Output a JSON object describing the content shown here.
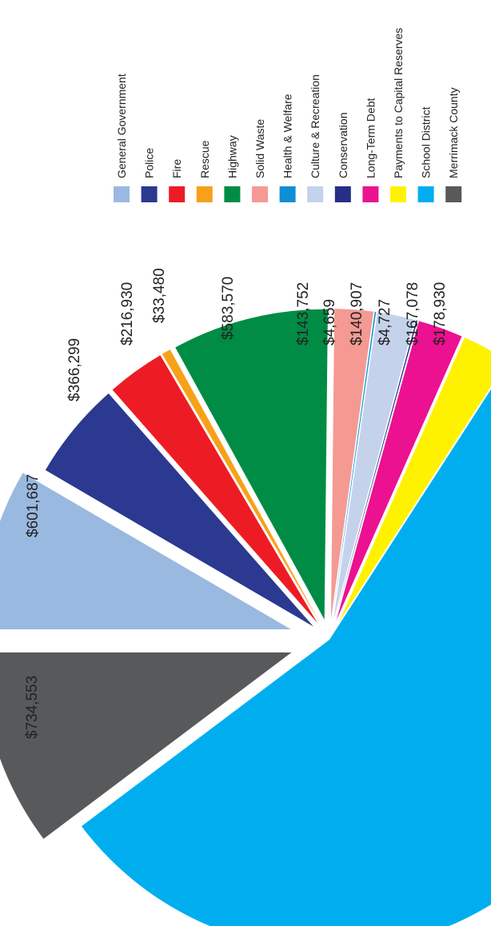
{
  "chart_data": {
    "type": "pie",
    "exploded": true,
    "title": "",
    "series": [
      {
        "name": "General Government",
        "value": 601687,
        "label": "$601,687",
        "color": "#99b9e0"
      },
      {
        "name": "Police",
        "value": 366299,
        "label": "$366,299",
        "color": "#2b3990"
      },
      {
        "name": "Fire",
        "value": 216930,
        "label": "$216,930",
        "color": "#ed1c24"
      },
      {
        "name": "Rescue",
        "value": 33480,
        "label": "$33,480",
        "color": "#f7a11a"
      },
      {
        "name": "Highway",
        "value": 583570,
        "label": "$583,570",
        "color": "#008c45"
      },
      {
        "name": "Solid Waste",
        "value": 143752,
        "label": "$143,752",
        "color": "#f49a93"
      },
      {
        "name": "Health & Welfare",
        "value": 4659,
        "label": "$4,659",
        "color": "#0e8ed4"
      },
      {
        "name": "Culture & Recreation",
        "value": 140907,
        "label": "$140,907",
        "color": "#c5d2ec"
      },
      {
        "name": "Conservation",
        "value": 4727,
        "label": "$4,727",
        "color": "#262e87"
      },
      {
        "name": "Long-Term Debt",
        "value": 167078,
        "label": "$167,078",
        "color": "#ec1190"
      },
      {
        "name": "Payments to Capital Reserves",
        "value": 178930,
        "label": "$178,930",
        "color": "#fff200"
      },
      {
        "name": "School District",
        "value": 3981000,
        "label": "",
        "color": "#00aeef"
      },
      {
        "name": "Merrimack County",
        "value": 734553,
        "label": "$734,553",
        "color": "#58595b"
      }
    ],
    "legend_placement": "right"
  }
}
